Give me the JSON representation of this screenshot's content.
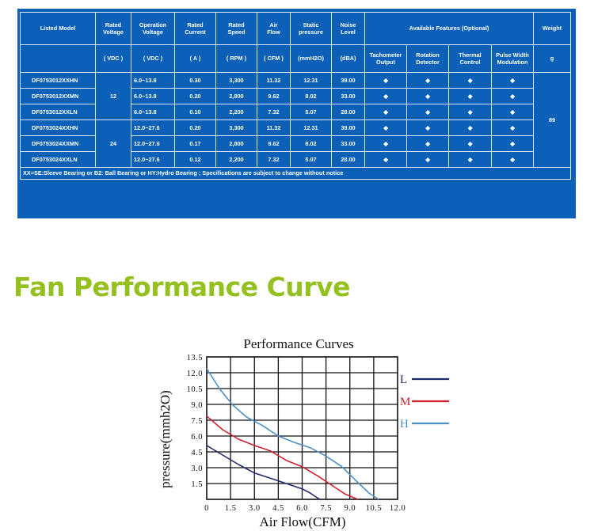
{
  "spec_table": {
    "header_row1": {
      "listed_model": "Listed Model",
      "rated_voltage": "Rated Voltage",
      "operation_voltage": "Operation Voltage",
      "rated_current": "Rated Current",
      "rated_speed": "Rated Speed",
      "air_flow": "Air Flow",
      "static_pressure": "Static pressure",
      "noise_level": "Noise Level",
      "available_features": "Available Features (Optional)",
      "weight": "Weight"
    },
    "header_row2": {
      "rated_voltage_unit": "( VDC )",
      "operation_voltage_unit": "( VDC )",
      "rated_current_unit": "( A )",
      "rated_speed_unit": "( RPM )",
      "air_flow_unit": "( CFM )",
      "static_pressure_unit": "(mmH2O)",
      "noise_level_unit": "(dBA)",
      "tachometer_output": "Tachometer Output",
      "rotation_detector": "Rotation Detector",
      "thermal_control": "Thermal Control",
      "pwm": "Pulse Width Modulation",
      "weight_unit": "g"
    },
    "rows": [
      {
        "model": "DF0753012XXHN",
        "op_voltage": "6.0~13.8",
        "current": "0.30",
        "speed": "3,300",
        "airflow": "11.32",
        "pressure": "12.31",
        "noise": "39.00",
        "f1": "◆",
        "f2": "◆",
        "f3": "◆",
        "f4": "◆"
      },
      {
        "model": "DF0753012XXMN",
        "op_voltage": "6.0~13.8",
        "current": "0.20",
        "speed": "2,800",
        "airflow": "9.62",
        "pressure": "8.02",
        "noise": "33.00",
        "f1": "◆",
        "f2": "◆",
        "f3": "◆",
        "f4": "◆"
      },
      {
        "model": "DF0753012XXLN",
        "op_voltage": "6.0~13.8",
        "current": "0.10",
        "speed": "2,200",
        "airflow": "7.32",
        "pressure": "5.07",
        "noise": "28.00",
        "f1": "◆",
        "f2": "◆",
        "f3": "◆",
        "f4": "◆"
      },
      {
        "model": "DF0753024XXHN",
        "op_voltage": "12.0~27.6",
        "current": "0.20",
        "speed": "3,300",
        "airflow": "11.32",
        "pressure": "12.31",
        "noise": "39.00",
        "f1": "◆",
        "f2": "◆",
        "f3": "◆",
        "f4": "◆"
      },
      {
        "model": "DF0753024XXMN",
        "op_voltage": "12.0~27.6",
        "current": "0.17",
        "speed": "2,800",
        "airflow": "9.62",
        "pressure": "8.02",
        "noise": "33.00",
        "f1": "◆",
        "f2": "◆",
        "f3": "◆",
        "f4": "◆"
      },
      {
        "model": "DF0753024XXLN",
        "op_voltage": "12.0~27.6",
        "current": "0.12",
        "speed": "2,200",
        "airflow": "7.32",
        "pressure": "5.07",
        "noise": "28.00",
        "f1": "◆",
        "f2": "◆",
        "f3": "◆",
        "f4": "◆"
      }
    ],
    "rated_voltage_12": "12",
    "rated_voltage_24": "24",
    "weight_value": "89",
    "note": "XX=SE:Sleeve Bearing or B2: Ball Bearing or HY:Hydro Bearing ; Specifications are subject to change without notice"
  },
  "section_heading": "Fan Performance Curve",
  "chart_data": {
    "type": "line",
    "title": "Performance Curves",
    "xlabel": "Air Flow(CFM)",
    "ylabel": "pressure(mmh2O)",
    "xlim": [
      0,
      12
    ],
    "ylim": [
      0,
      13.5
    ],
    "x_ticks": [
      0,
      1.5,
      3,
      4.5,
      6,
      7.5,
      9,
      10.5,
      12
    ],
    "x_tick_labels": [
      "0",
      "1.5",
      "3.0",
      "4.5",
      "6.0",
      "7.5",
      "9.0",
      "10.5",
      "12.0"
    ],
    "y_ticks": [
      1.5,
      3,
      4.5,
      6,
      7.5,
      9,
      10.5,
      12,
      13.5
    ],
    "y_tick_labels": [
      "1.5",
      "3.0",
      "4.5",
      "6.0",
      "7.5",
      "9.0",
      "10.5",
      "12.0",
      "13.5"
    ],
    "grid": true,
    "legend_position": "right",
    "series": [
      {
        "name": "L",
        "color": "#1f2a6b",
        "points": [
          [
            0,
            5.1
          ],
          [
            1,
            4.2
          ],
          [
            2,
            3.3
          ],
          [
            3,
            2.5
          ],
          [
            4,
            2.0
          ],
          [
            5,
            1.5
          ],
          [
            6,
            1.0
          ],
          [
            6.5,
            0.6
          ],
          [
            7.1,
            0.0
          ]
        ]
      },
      {
        "name": "M",
        "color": "#d0202e",
        "points": [
          [
            0,
            7.9
          ],
          [
            1,
            6.6
          ],
          [
            2,
            5.7
          ],
          [
            3,
            5.1
          ],
          [
            4,
            4.6
          ],
          [
            5,
            3.7
          ],
          [
            6,
            3.1
          ],
          [
            7,
            2.2
          ],
          [
            8,
            1.2
          ],
          [
            8.7,
            0.5
          ],
          [
            9.5,
            0.0
          ]
        ]
      },
      {
        "name": "H",
        "color": "#4f8fc4",
        "points": [
          [
            0,
            12.4
          ],
          [
            0.8,
            10.5
          ],
          [
            1.6,
            9.0
          ],
          [
            2.5,
            7.8
          ],
          [
            3.5,
            7.0
          ],
          [
            4.5,
            6.0
          ],
          [
            5.5,
            5.4
          ],
          [
            6.5,
            4.9
          ],
          [
            7.5,
            4.1
          ],
          [
            8.5,
            3.1
          ],
          [
            9.5,
            1.6
          ],
          [
            10.2,
            0.6
          ],
          [
            10.8,
            0.0
          ]
        ]
      }
    ]
  }
}
